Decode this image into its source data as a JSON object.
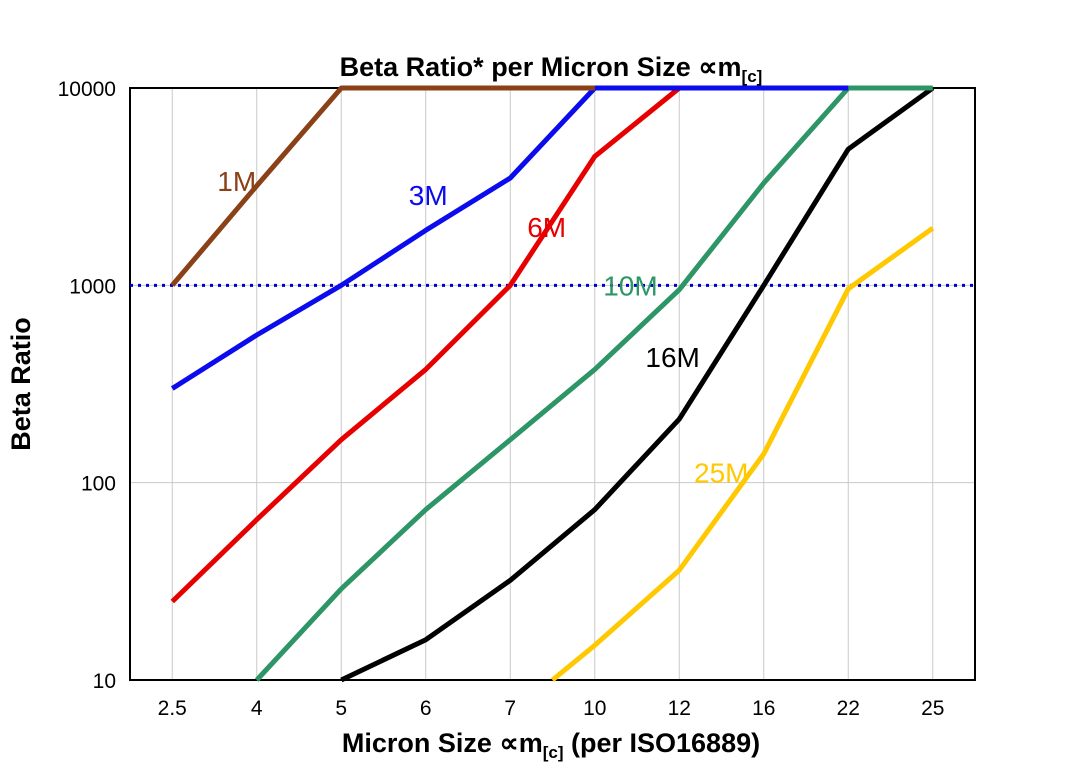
{
  "chart_data": {
    "type": "line",
    "title": "Beta Ratio* per Micron Size ∝m[c]",
    "title_parts": {
      "prefix": "Beta Ratio* per Micron Size ",
      "symbol": "∝m",
      "sub": "[c]"
    },
    "xlabel": "Micron Size ∝m[c] (per ISO16889)",
    "xlabel_parts": {
      "prefix": "Micron Size ",
      "symbol": "∝m",
      "sub": "[c]",
      "suffix": " (per ISO16889)"
    },
    "ylabel": "Beta Ratio",
    "x_categories": [
      2.5,
      4,
      5,
      6,
      7,
      10,
      12,
      16,
      22,
      25
    ],
    "y_scale": "log",
    "y_ticks": [
      10,
      100,
      1000,
      10000
    ],
    "ylim": [
      10,
      10000
    ],
    "grid": true,
    "legend_position": "inline-labels",
    "reference_line": {
      "y": 1000,
      "color": "#0000cc",
      "style": "dotted"
    },
    "series": [
      {
        "name": "1M",
        "color": "#8a4117",
        "points": [
          [
            2.5,
            1000
          ],
          [
            4,
            3200
          ],
          [
            5,
            10000
          ],
          [
            10,
            10000
          ]
        ]
      },
      {
        "name": "3M",
        "color": "#0b0bee",
        "points": [
          [
            2.5,
            300
          ],
          [
            4,
            560
          ],
          [
            5,
            1000
          ],
          [
            6,
            1900
          ],
          [
            7,
            3500
          ],
          [
            10,
            10000
          ],
          [
            22,
            10000
          ]
        ]
      },
      {
        "name": "6M",
        "color": "#e60000",
        "points": [
          [
            2.5,
            25
          ],
          [
            4,
            65
          ],
          [
            5,
            165
          ],
          [
            6,
            375
          ],
          [
            7,
            1000
          ],
          [
            10,
            4500
          ],
          [
            12,
            10000
          ]
        ]
      },
      {
        "name": "10M",
        "color": "#2e9566",
        "points": [
          [
            4,
            10
          ],
          [
            5,
            29
          ],
          [
            6,
            73
          ],
          [
            7,
            165
          ],
          [
            10,
            375
          ],
          [
            12,
            950
          ],
          [
            16,
            3300
          ],
          [
            22,
            10000
          ],
          [
            25,
            10000
          ]
        ]
      },
      {
        "name": "16M",
        "color": "#000000",
        "points": [
          [
            5,
            10
          ],
          [
            6,
            16
          ],
          [
            7,
            32
          ],
          [
            10,
            73
          ],
          [
            12,
            210
          ],
          [
            16,
            1000
          ],
          [
            22,
            4900
          ],
          [
            25,
            10000
          ]
        ]
      },
      {
        "name": "25M",
        "color": "#ffc800",
        "points": [
          [
            8.5,
            10
          ],
          [
            10,
            15
          ],
          [
            12,
            36
          ],
          [
            16,
            140
          ],
          [
            22,
            960
          ],
          [
            25,
            1950
          ]
        ]
      }
    ],
    "series_labels": [
      {
        "text": "1M",
        "color": "#8a4117",
        "x": 3.3,
        "y": 3000
      },
      {
        "text": "3M",
        "color": "#0b0bee",
        "x": 5.8,
        "y": 2550
      },
      {
        "text": "6M",
        "color": "#e60000",
        "x": 7.6,
        "y": 1760
      },
      {
        "text": "10M",
        "color": "#2e9566",
        "x": 10.2,
        "y": 890
      },
      {
        "text": "16M",
        "color": "#000000",
        "x": 11.2,
        "y": 385
      },
      {
        "text": "25M",
        "color": "#ffc800",
        "x": 12.7,
        "y": 100
      }
    ]
  }
}
